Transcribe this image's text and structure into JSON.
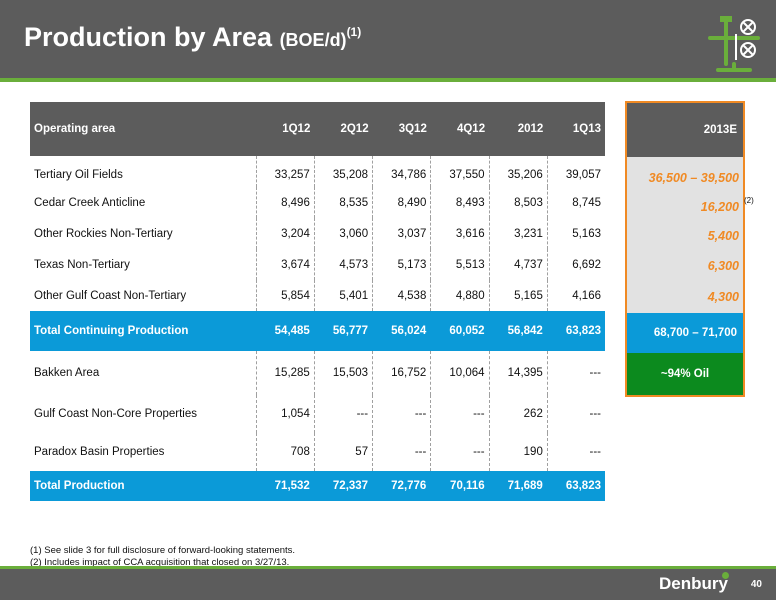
{
  "title": {
    "main": "Production by Area",
    "unit": "(BOE/d)",
    "note": "(1)"
  },
  "table": {
    "headers": [
      "Operating area",
      "1Q12",
      "2Q12",
      "3Q12",
      "4Q12",
      "2012",
      "1Q13"
    ],
    "rows": [
      {
        "area": "Tertiary Oil Fields",
        "values": [
          "33,257",
          "35,208",
          "34,786",
          "37,550",
          "35,206",
          "39,057"
        ]
      },
      {
        "area": "Cedar Creek Anticline",
        "values": [
          "8,496",
          "8,535",
          "8,490",
          "8,493",
          "8,503",
          "8,745"
        ]
      },
      {
        "area": "Other Rockies Non-Tertiary",
        "values": [
          "3,204",
          "3,060",
          "3,037",
          "3,616",
          "3,231",
          "5,163"
        ]
      },
      {
        "area": "Texas Non-Tertiary",
        "values": [
          "3,674",
          "4,573",
          "5,173",
          "5,513",
          "4,737",
          "6,692"
        ]
      },
      {
        "area": "Other Gulf Coast Non-Tertiary",
        "values": [
          "5,854",
          "5,401",
          "4,538",
          "4,880",
          "5,165",
          "4,166"
        ]
      }
    ],
    "continuing_total": {
      "area": "Total Continuing Production",
      "values": [
        "54,485",
        "56,777",
        "56,024",
        "60,052",
        "56,842",
        "63,823"
      ]
    },
    "other_rows": [
      {
        "area": "Bakken Area",
        "values": [
          "15,285",
          "15,503",
          "16,752",
          "10,064",
          "14,395",
          "---"
        ]
      },
      {
        "area": "Gulf Coast Non-Core Properties",
        "values": [
          "1,054",
          "---",
          "---",
          "---",
          "262",
          "---"
        ]
      },
      {
        "area": "Paradox Basin Properties",
        "values": [
          "708",
          "57",
          "---",
          "---",
          "190",
          "---"
        ]
      }
    ],
    "grand_total": {
      "area": "Total Production",
      "values": [
        "71,532",
        "72,337",
        "72,776",
        "70,116",
        "71,689",
        "63,823"
      ]
    }
  },
  "estimate": {
    "header": "2013E",
    "values": [
      "36,500 – 39,500",
      "16,200",
      "5,400",
      "6,300",
      "4,300"
    ],
    "cca_note": "(2)",
    "total": "68,700 – 71,700",
    "oil_share": "~94% Oil",
    "accent_color": "#f08a24"
  },
  "footnotes": [
    "(1) See slide 3 for full disclosure of forward-looking statements.",
    "(2) Includes impact of CCA acquisition that closed on 3/27/13."
  ],
  "footer": {
    "brand": "Denbury",
    "page": "40"
  },
  "colors": {
    "header_bg": "#5c5c5c",
    "green": "#6aae3b",
    "total_blue": "#0b9ad8",
    "oil_green": "#0c8a1e"
  }
}
